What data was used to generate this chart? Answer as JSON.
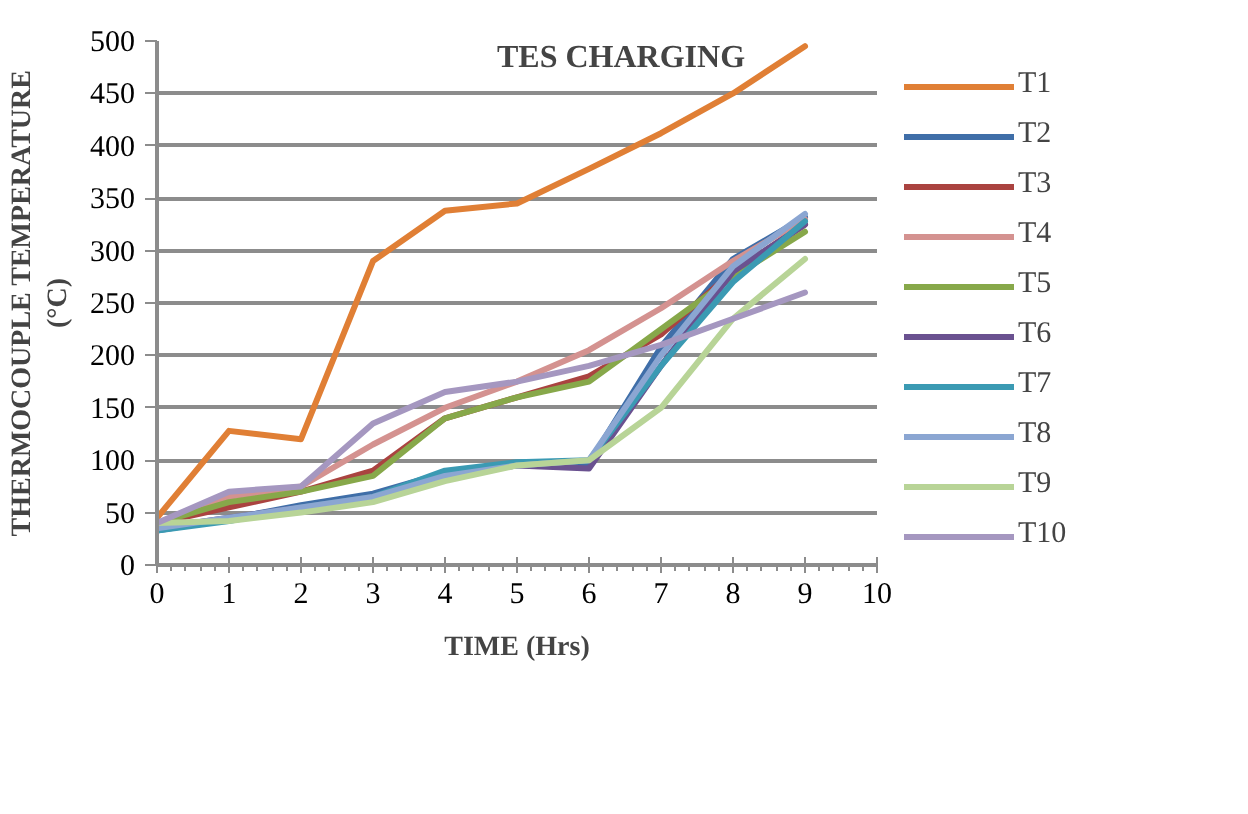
{
  "chart_data": {
    "type": "line",
    "title": "TES CHARGING",
    "xlabel": "TIME (Hrs)",
    "ylabel": "THERMOCOUPLE TEMPERATURE\n(°C)",
    "x": [
      0,
      1,
      2,
      3,
      4,
      5,
      6,
      7,
      8,
      9
    ],
    "xlim": [
      0,
      10
    ],
    "xticks": [
      0,
      1,
      2,
      3,
      4,
      5,
      6,
      7,
      8,
      9,
      10
    ],
    "ylim": [
      0,
      500
    ],
    "yticks": [
      0,
      50,
      100,
      150,
      200,
      250,
      300,
      350,
      400,
      450,
      500
    ],
    "grid": "y",
    "legend": "right",
    "marker": "none",
    "line_style": "solid",
    "series": [
      {
        "name": "T1",
        "color": "#e07f35",
        "values": [
          45,
          128,
          120,
          290,
          338,
          345,
          378,
          412,
          450,
          495
        ]
      },
      {
        "name": "T2",
        "color": "#3f6ea8",
        "values": [
          33,
          44,
          57,
          68,
          88,
          97,
          97,
          208,
          292,
          332
        ]
      },
      {
        "name": "T3",
        "color": "#aa4340",
        "values": [
          40,
          55,
          70,
          90,
          140,
          160,
          180,
          220,
          280,
          325
        ]
      },
      {
        "name": "T4",
        "color": "#d49290",
        "values": [
          40,
          65,
          75,
          115,
          150,
          175,
          205,
          245,
          290,
          330
        ]
      },
      {
        "name": "T5",
        "color": "#87a84a",
        "values": [
          40,
          60,
          70,
          85,
          140,
          160,
          175,
          225,
          275,
          318
        ]
      },
      {
        "name": "T6",
        "color": "#6a5190",
        "values": [
          35,
          45,
          55,
          65,
          85,
          95,
          92,
          190,
          280,
          325
        ]
      },
      {
        "name": "T7",
        "color": "#3b9ab3",
        "values": [
          33,
          42,
          55,
          65,
          90,
          98,
          100,
          190,
          270,
          328
        ]
      },
      {
        "name": "T8",
        "color": "#8ba6d2",
        "values": [
          35,
          45,
          55,
          65,
          85,
          95,
          100,
          200,
          285,
          335
        ]
      },
      {
        "name": "T9",
        "color": "#b8d497",
        "values": [
          40,
          42,
          50,
          60,
          80,
          95,
          100,
          150,
          235,
          292
        ]
      },
      {
        "name": "T10",
        "color": "#a597c0",
        "values": [
          40,
          70,
          75,
          135,
          165,
          175,
          190,
          210,
          235,
          260
        ]
      }
    ]
  }
}
